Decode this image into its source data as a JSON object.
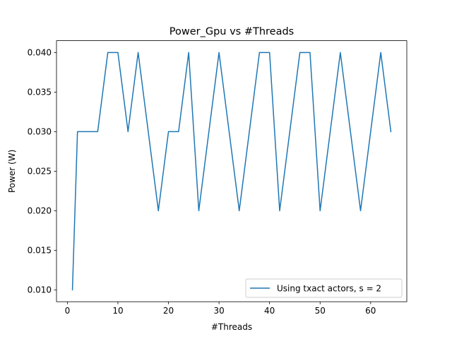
{
  "chart_data": {
    "type": "line",
    "title": "Power_Gpu vs #Threads",
    "xlabel": "#Threads",
    "ylabel": "Power (W)",
    "xlim": [
      -2.15,
      67.15
    ],
    "ylim": [
      0.0085,
      0.0415
    ],
    "xticks": [
      0,
      10,
      20,
      30,
      40,
      50,
      60
    ],
    "xtick_labels": [
      "0",
      "10",
      "20",
      "30",
      "40",
      "50",
      "60"
    ],
    "yticks": [
      0.01,
      0.015,
      0.02,
      0.025,
      0.03,
      0.035,
      0.04
    ],
    "ytick_labels": [
      "0.010",
      "0.015",
      "0.020",
      "0.025",
      "0.030",
      "0.035",
      "0.040"
    ],
    "grid": false,
    "legend_location": "lower right",
    "colors": {
      "series": "#1f77b4",
      "axes": "#000000",
      "legend_border": "#cccccc"
    },
    "series": [
      {
        "name": "Using txact actors, s = 2",
        "x": [
          1,
          2,
          4,
          6,
          8,
          10,
          12,
          14,
          16,
          18,
          20,
          22,
          24,
          26,
          28,
          30,
          32,
          34,
          36,
          38,
          40,
          42,
          44,
          46,
          48,
          50,
          52,
          54,
          56,
          58,
          60,
          62,
          64
        ],
        "y": [
          0.01,
          0.03,
          0.03,
          0.03,
          0.04,
          0.04,
          0.03,
          0.04,
          0.03,
          0.02,
          0.03,
          0.03,
          0.04,
          0.02,
          0.03,
          0.04,
          0.03,
          0.02,
          0.03,
          0.04,
          0.04,
          0.02,
          0.03,
          0.04,
          0.04,
          0.02,
          0.03,
          0.04,
          0.03,
          0.02,
          0.03,
          0.04,
          0.03
        ]
      }
    ]
  }
}
